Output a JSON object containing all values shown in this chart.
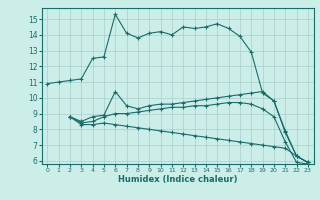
{
  "background_color": "#cceee8",
  "grid_color": "#aacccc",
  "line_color": "#1a6b6b",
  "xlabel": "Humidex (Indice chaleur)",
  "xlim": [
    -0.5,
    23.5
  ],
  "ylim": [
    5.8,
    15.7
  ],
  "yticks": [
    6,
    7,
    8,
    9,
    10,
    11,
    12,
    13,
    14,
    15
  ],
  "xticks": [
    0,
    1,
    2,
    3,
    4,
    5,
    6,
    7,
    8,
    9,
    10,
    11,
    12,
    13,
    14,
    15,
    16,
    17,
    18,
    19,
    20,
    21,
    22,
    23
  ],
  "line1_x": [
    0,
    1,
    2,
    3,
    4,
    5,
    6,
    7,
    8,
    9,
    10,
    11,
    12,
    13,
    14,
    15,
    16,
    17,
    18,
    19,
    20,
    21,
    22,
    23
  ],
  "line1_y": [
    10.9,
    11.0,
    11.1,
    11.2,
    12.5,
    12.6,
    15.3,
    14.1,
    13.8,
    14.1,
    14.2,
    14.0,
    14.5,
    14.4,
    14.5,
    14.7,
    14.4,
    13.9,
    12.9,
    10.3,
    9.8,
    7.8,
    6.3,
    5.9
  ],
  "line2_x": [
    2,
    3,
    4,
    5,
    6,
    7,
    8,
    9,
    10,
    11,
    12,
    13,
    14,
    15,
    16,
    17,
    18,
    19,
    20,
    21,
    22,
    23
  ],
  "line2_y": [
    8.8,
    8.5,
    8.8,
    8.9,
    10.4,
    9.5,
    9.3,
    9.5,
    9.6,
    9.6,
    9.7,
    9.8,
    9.9,
    10.0,
    10.1,
    10.2,
    10.3,
    10.4,
    9.8,
    7.9,
    6.3,
    5.9
  ],
  "line3_x": [
    2,
    3,
    4,
    5,
    6,
    7,
    8,
    9,
    10,
    11,
    12,
    13,
    14,
    15,
    16,
    17,
    18,
    19,
    20,
    21,
    22,
    23
  ],
  "line3_y": [
    8.8,
    8.4,
    8.5,
    8.8,
    9.0,
    9.0,
    9.1,
    9.2,
    9.3,
    9.4,
    9.4,
    9.5,
    9.5,
    9.6,
    9.7,
    9.7,
    9.6,
    9.3,
    8.8,
    7.2,
    5.9,
    5.8
  ],
  "line4_x": [
    2,
    3,
    4,
    5,
    6,
    7,
    8,
    9,
    10,
    11,
    12,
    13,
    14,
    15,
    16,
    17,
    18,
    19,
    20,
    21,
    22,
    23
  ],
  "line4_y": [
    8.8,
    8.3,
    8.3,
    8.4,
    8.3,
    8.2,
    8.1,
    8.0,
    7.9,
    7.8,
    7.7,
    7.6,
    7.5,
    7.4,
    7.3,
    7.2,
    7.1,
    7.0,
    6.9,
    6.8,
    6.3,
    5.9
  ]
}
